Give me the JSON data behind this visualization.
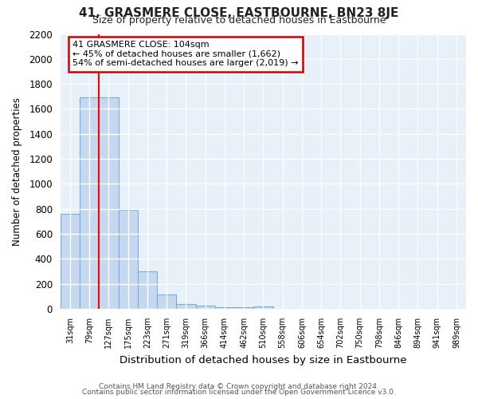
{
  "title": "41, GRASMERE CLOSE, EASTBOURNE, BN23 8JE",
  "subtitle": "Size of property relative to detached houses in Eastbourne",
  "xlabel": "Distribution of detached houses by size in Eastbourne",
  "ylabel": "Number of detached properties",
  "categories": [
    "31sqm",
    "79sqm",
    "127sqm",
    "175sqm",
    "223sqm",
    "271sqm",
    "319sqm",
    "366sqm",
    "414sqm",
    "462sqm",
    "510sqm",
    "558sqm",
    "606sqm",
    "654sqm",
    "702sqm",
    "750sqm",
    "798sqm",
    "846sqm",
    "894sqm",
    "941sqm",
    "989sqm"
  ],
  "values": [
    760,
    1690,
    1690,
    790,
    300,
    115,
    40,
    25,
    15,
    15,
    20,
    0,
    0,
    0,
    0,
    0,
    0,
    0,
    0,
    0,
    0
  ],
  "bar_color": "#c5d8f0",
  "bar_edge_color": "#7aadd4",
  "background_color": "#dce8f5",
  "plot_bg_color": "#e8f0fa",
  "grid_color": "#ffffff",
  "red_line_x": 1.5,
  "annotation_line1": "41 GRASMERE CLOSE: 104sqm",
  "annotation_line2": "← 45% of detached houses are smaller (1,662)",
  "annotation_line3": "54% of semi-detached houses are larger (2,019) →",
  "annotation_box_color": "#ffffff",
  "annotation_box_edge": "#cc0000",
  "footnote1": "Contains HM Land Registry data © Crown copyright and database right 2024.",
  "footnote2": "Contains public sector information licensed under the Open Government Licence v3.0.",
  "ylim": [
    0,
    2200
  ],
  "yticks": [
    0,
    200,
    400,
    600,
    800,
    1000,
    1200,
    1400,
    1600,
    1800,
    2000,
    2200
  ]
}
